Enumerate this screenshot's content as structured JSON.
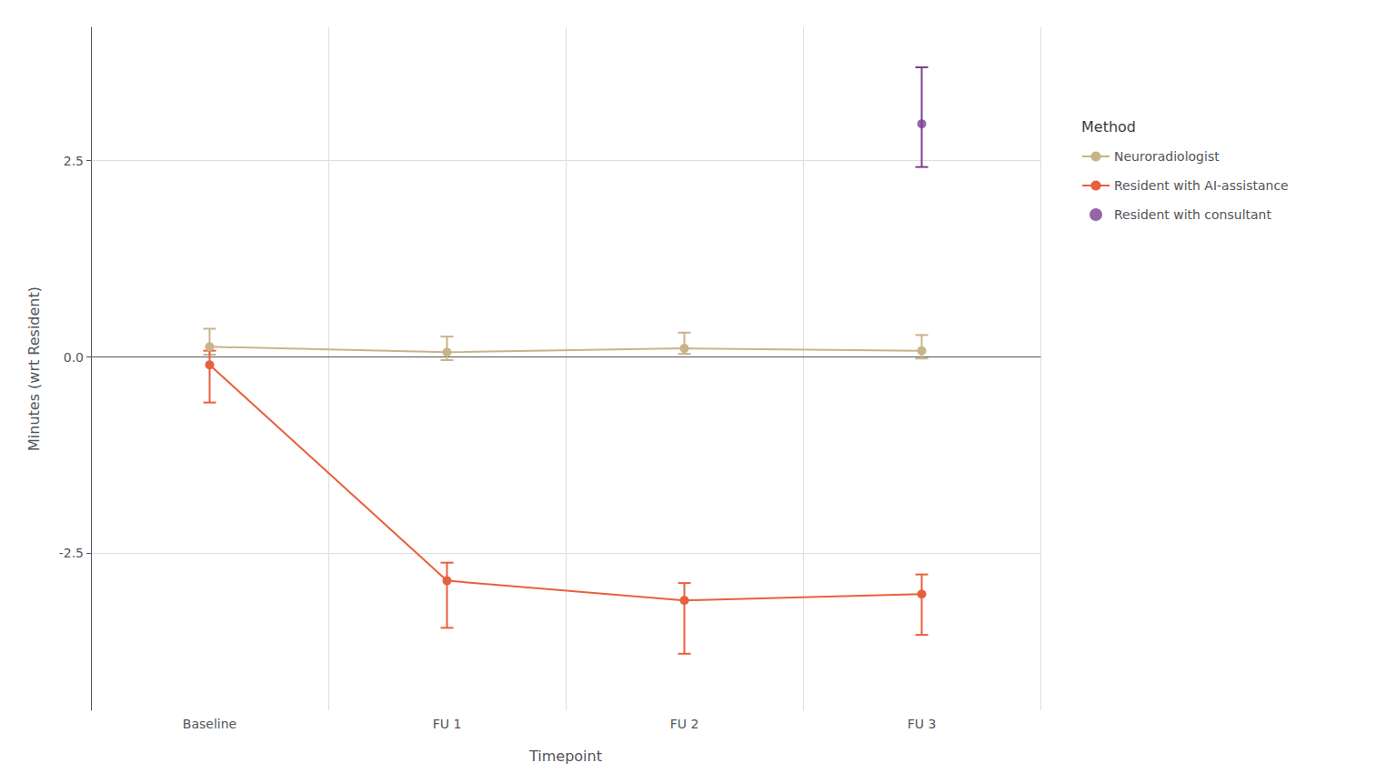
{
  "chart_data": {
    "type": "line",
    "xlabel": "Timepoint",
    "ylabel": "Minutes (wrt Resident)",
    "legend_title": "Method",
    "categories": [
      "Baseline",
      "FU 1",
      "FU 2",
      "FU 3"
    ],
    "series": [
      {
        "name": "Neuroradiologist",
        "color": "#C8B48A",
        "type": "line",
        "marker": "circle",
        "line_style": "solid",
        "values": [
          0.13,
          0.06,
          0.11,
          0.08
        ],
        "yerr_lower": [
          0.1,
          0.1,
          0.07,
          0.1
        ],
        "yerr_upper": [
          0.23,
          0.2,
          0.2,
          0.2
        ]
      },
      {
        "name": "Resident with AI-assistance",
        "color": "#E8603C",
        "type": "line",
        "marker": "circle",
        "line_style": "solid",
        "values": [
          -0.1,
          -2.85,
          -3.1,
          -3.02
        ],
        "yerr_lower": [
          0.48,
          0.6,
          0.68,
          0.52
        ],
        "yerr_upper": [
          0.18,
          0.23,
          0.22,
          0.25
        ]
      },
      {
        "name": "Resident with consultant",
        "color": "#7B4090",
        "type": "scatter",
        "marker": "circle",
        "values": [
          null,
          null,
          null,
          2.97
        ],
        "yerr_lower": [
          null,
          null,
          null,
          0.55
        ],
        "yerr_upper": [
          null,
          null,
          null,
          0.72
        ]
      }
    ],
    "ylim": [
      -4.5,
      4.2
    ],
    "yticks": [
      -2.5,
      {
        "value": 0.0,
        "label": "0.0"
      },
      2.5
    ],
    "grid": true,
    "legend": "right"
  }
}
